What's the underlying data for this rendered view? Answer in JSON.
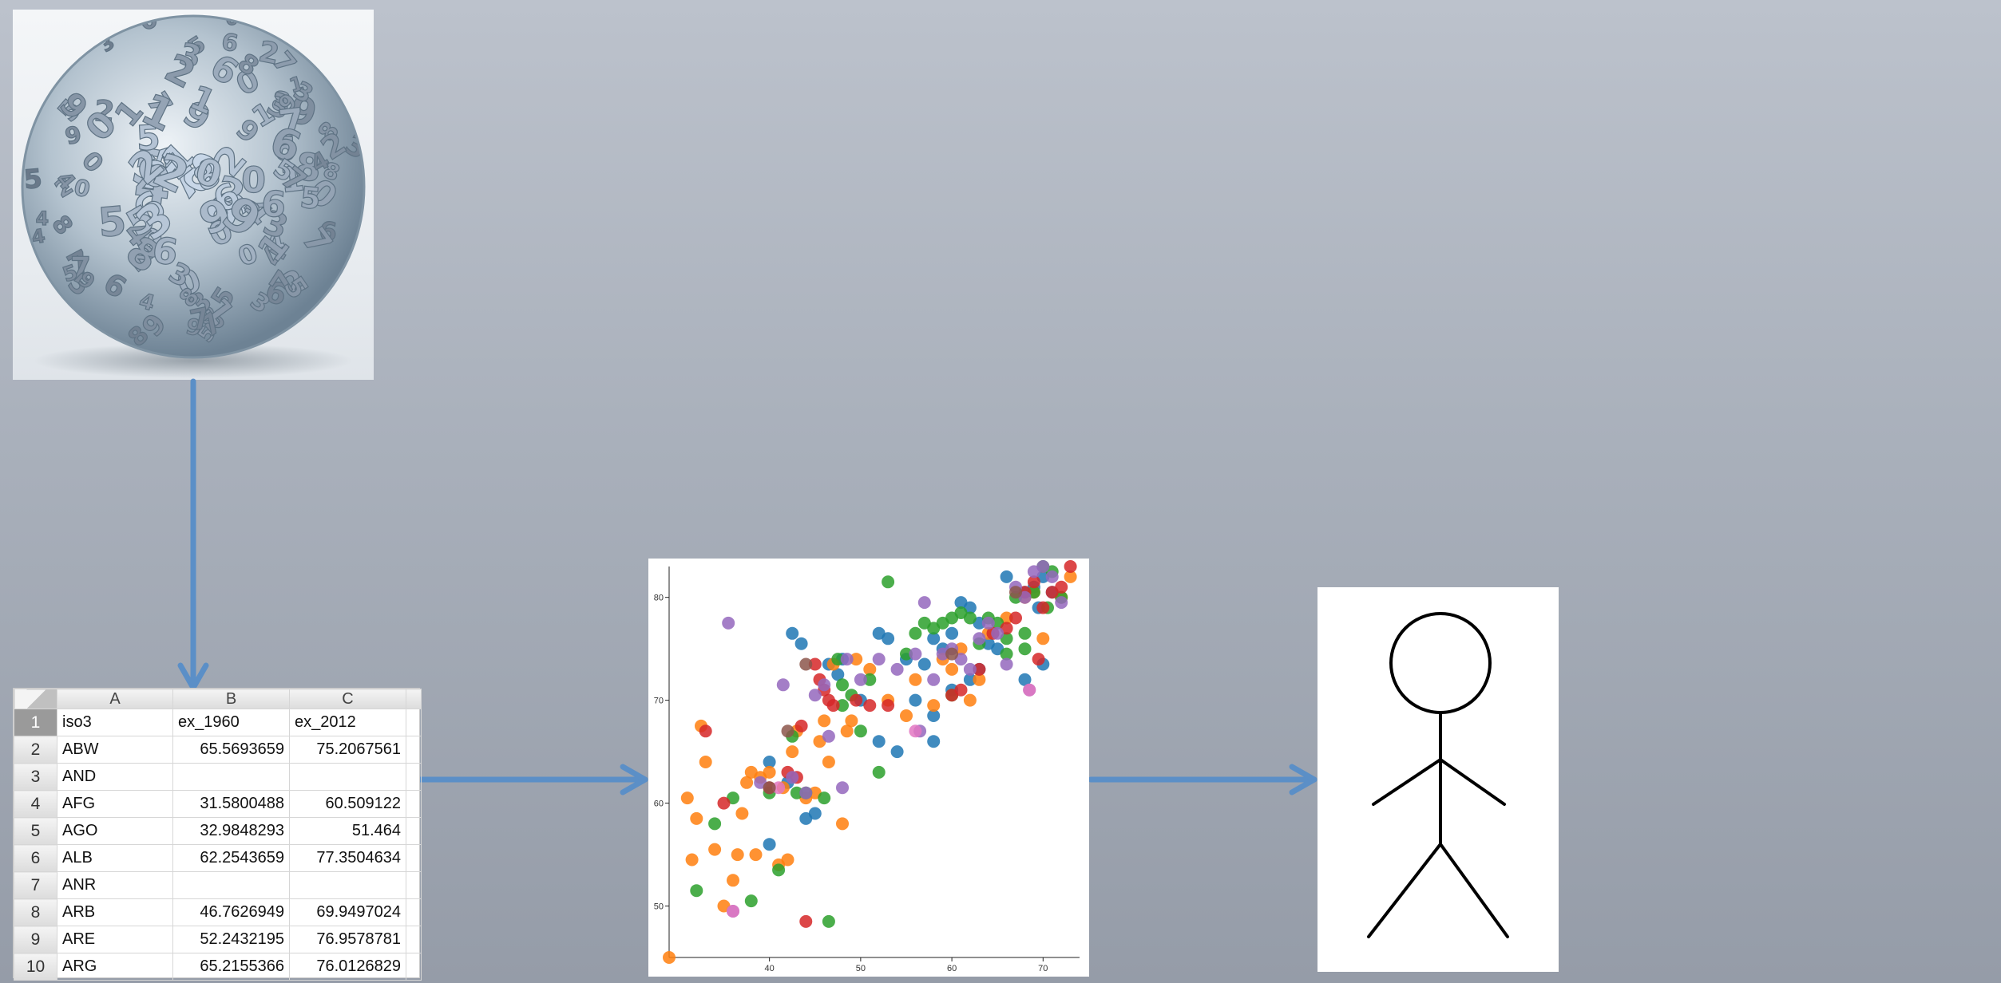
{
  "spreadsheet": {
    "columns": [
      "A",
      "B",
      "C"
    ],
    "rows": [
      {
        "n": "1",
        "a": "iso3",
        "b": "ex_1960",
        "c": "ex_2012"
      },
      {
        "n": "2",
        "a": "ABW",
        "b": "65.5693659",
        "c": "75.2067561"
      },
      {
        "n": "3",
        "a": "AND",
        "b": "",
        "c": ""
      },
      {
        "n": "4",
        "a": "AFG",
        "b": "31.5800488",
        "c": "60.509122"
      },
      {
        "n": "5",
        "a": "AGO",
        "b": "32.9848293",
        "c": "51.464"
      },
      {
        "n": "6",
        "a": "ALB",
        "b": "62.2543659",
        "c": "77.3504634"
      },
      {
        "n": "7",
        "a": "ANR",
        "b": "",
        "c": ""
      },
      {
        "n": "8",
        "a": "ARB",
        "b": "46.7626949",
        "c": "69.9497024"
      },
      {
        "n": "9",
        "a": "ARE",
        "b": "52.2432195",
        "c": "76.9578781"
      },
      {
        "n": "10",
        "a": "ARG",
        "b": "65.2155366",
        "c": "76.0126829"
      }
    ]
  },
  "ball": {
    "digits": [
      "2",
      "5",
      "9",
      "0",
      "6",
      "4",
      "7",
      "3",
      "1",
      "8",
      "5",
      "2",
      "6",
      "0",
      "9",
      "3",
      "4",
      "7",
      "1",
      "8",
      "2",
      "6",
      "5",
      "0",
      "3",
      "9",
      "7",
      "4",
      "8",
      "1",
      "6",
      "2",
      "0",
      "5",
      "3",
      "9",
      "4",
      "7",
      "1",
      "8",
      "5",
      "6"
    ]
  },
  "chart_data": {
    "type": "scatter",
    "title": "",
    "xlabel": "",
    "ylabel": "",
    "xlim": [
      29,
      74
    ],
    "ylim": [
      45,
      83
    ],
    "x_ticks": [
      "40",
      "50",
      "60",
      "70"
    ],
    "y_ticks": [
      "50",
      "60",
      "70",
      "80"
    ],
    "grid": false,
    "legend": "none",
    "series": [
      {
        "color": "#1f77b4",
        "points": [
          [
            42.5,
            76.5
          ],
          [
            43.5,
            75.5
          ],
          [
            46.5,
            73.5
          ],
          [
            47.5,
            72.5
          ],
          [
            52,
            76.5
          ],
          [
            53,
            76
          ],
          [
            55,
            74
          ],
          [
            57,
            73.5
          ],
          [
            58,
            76
          ],
          [
            59,
            75
          ],
          [
            60,
            76.5
          ],
          [
            61,
            79.5
          ],
          [
            62,
            79
          ],
          [
            63,
            77.5
          ],
          [
            66,
            82
          ],
          [
            68,
            80.5
          ],
          [
            69,
            81
          ],
          [
            70,
            82
          ],
          [
            71,
            80.5
          ],
          [
            69.5,
            79
          ],
          [
            70,
            73.5
          ],
          [
            68,
            72
          ],
          [
            65,
            75
          ],
          [
            63,
            73
          ],
          [
            60,
            71
          ],
          [
            58,
            68.5
          ],
          [
            58,
            66
          ],
          [
            54,
            65
          ],
          [
            52,
            66
          ],
          [
            45,
            59
          ],
          [
            44,
            58.5
          ],
          [
            42,
            62
          ],
          [
            40,
            64
          ],
          [
            40,
            56
          ],
          [
            48,
            74
          ],
          [
            50,
            70
          ],
          [
            56,
            70
          ],
          [
            62,
            72
          ],
          [
            64,
            75.5
          ]
        ]
      },
      {
        "color": "#ff7f0e",
        "points": [
          [
            29,
            45
          ],
          [
            31,
            60.5
          ],
          [
            31.5,
            54.5
          ],
          [
            32,
            58.5
          ],
          [
            32.5,
            67.5
          ],
          [
            33,
            64
          ],
          [
            34,
            55.5
          ],
          [
            35,
            50
          ],
          [
            36,
            52.5
          ],
          [
            36.5,
            55
          ],
          [
            37,
            59
          ],
          [
            37.5,
            62
          ],
          [
            38,
            63
          ],
          [
            38.5,
            55
          ],
          [
            39,
            62.5
          ],
          [
            40,
            63
          ],
          [
            41,
            54
          ],
          [
            41.5,
            61.5
          ],
          [
            42,
            54.5
          ],
          [
            42.5,
            65
          ],
          [
            43,
            67
          ],
          [
            44,
            60.5
          ],
          [
            45,
            61
          ],
          [
            45.5,
            66
          ],
          [
            46,
            68
          ],
          [
            46.5,
            64
          ],
          [
            47,
            73.5
          ],
          [
            48,
            58
          ],
          [
            48.5,
            67
          ],
          [
            49,
            68
          ],
          [
            49.5,
            74
          ],
          [
            51,
            73
          ],
          [
            53,
            70
          ],
          [
            55,
            68.5
          ],
          [
            56,
            72
          ],
          [
            58,
            69.5
          ],
          [
            59,
            74
          ],
          [
            60,
            73
          ],
          [
            61,
            75
          ],
          [
            62,
            70
          ],
          [
            63,
            72
          ],
          [
            64,
            76.5
          ],
          [
            66,
            78
          ],
          [
            68,
            80
          ],
          [
            69,
            80.5
          ],
          [
            70,
            76
          ],
          [
            72,
            80
          ],
          [
            73,
            82
          ]
        ]
      },
      {
        "color": "#2ca02c",
        "points": [
          [
            32,
            51.5
          ],
          [
            34,
            58
          ],
          [
            36,
            60.5
          ],
          [
            38,
            50.5
          ],
          [
            40,
            61
          ],
          [
            41,
            53.5
          ],
          [
            42.5,
            66.5
          ],
          [
            43,
            61
          ],
          [
            44,
            61
          ],
          [
            46,
            60.5
          ],
          [
            46.5,
            48.5
          ],
          [
            47.5,
            74
          ],
          [
            48,
            71.5
          ],
          [
            49,
            70.5
          ],
          [
            50,
            67
          ],
          [
            51,
            72
          ],
          [
            52,
            63
          ],
          [
            53,
            81.5
          ],
          [
            55,
            74.5
          ],
          [
            57,
            77.5
          ],
          [
            58,
            77
          ],
          [
            59,
            77.5
          ],
          [
            60,
            78
          ],
          [
            61,
            78.5
          ],
          [
            62,
            78
          ],
          [
            63,
            75.5
          ],
          [
            64,
            78
          ],
          [
            65,
            77.5
          ],
          [
            66,
            76
          ],
          [
            67,
            80
          ],
          [
            68,
            76.5
          ],
          [
            69,
            80.5
          ],
          [
            70,
            83
          ],
          [
            71,
            82.5
          ],
          [
            72,
            80
          ],
          [
            70.5,
            79
          ],
          [
            68,
            75
          ],
          [
            66,
            74.5
          ],
          [
            60,
            70.5
          ],
          [
            56,
            76.5
          ],
          [
            48,
            69.5
          ]
        ]
      },
      {
        "color": "#d62728",
        "points": [
          [
            33,
            67
          ],
          [
            35,
            60
          ],
          [
            40,
            61.5
          ],
          [
            42,
            63
          ],
          [
            43,
            62.5
          ],
          [
            43.5,
            67.5
          ],
          [
            44,
            48.5
          ],
          [
            45,
            73.5
          ],
          [
            45.5,
            72
          ],
          [
            46,
            71
          ],
          [
            46.5,
            70
          ],
          [
            47,
            69.5
          ],
          [
            49.5,
            70
          ],
          [
            51,
            69.5
          ],
          [
            53,
            69.5
          ],
          [
            60,
            70.5
          ],
          [
            61,
            71
          ],
          [
            63,
            73
          ],
          [
            64.5,
            76.5
          ],
          [
            66,
            77
          ],
          [
            68,
            80.5
          ],
          [
            69,
            81.5
          ],
          [
            70,
            79
          ],
          [
            71,
            80.5
          ],
          [
            72,
            81
          ],
          [
            73,
            83
          ],
          [
            69.5,
            74
          ],
          [
            67,
            78
          ]
        ]
      },
      {
        "color": "#9467bd",
        "points": [
          [
            35.5,
            77.5
          ],
          [
            36,
            49.5
          ],
          [
            39,
            62
          ],
          [
            41.5,
            71.5
          ],
          [
            42.5,
            62.5
          ],
          [
            44,
            61
          ],
          [
            45,
            70.5
          ],
          [
            46,
            71.5
          ],
          [
            46.5,
            66.5
          ],
          [
            48,
            61.5
          ],
          [
            48.5,
            74
          ],
          [
            50,
            72
          ],
          [
            52,
            74
          ],
          [
            54,
            73
          ],
          [
            56,
            74.5
          ],
          [
            56.5,
            67
          ],
          [
            57,
            79.5
          ],
          [
            58,
            72
          ],
          [
            59,
            74.5
          ],
          [
            60,
            75
          ],
          [
            61,
            74
          ],
          [
            62,
            73
          ],
          [
            63,
            76
          ],
          [
            64,
            77.5
          ],
          [
            65,
            76.5
          ],
          [
            66,
            73.5
          ],
          [
            67,
            81
          ],
          [
            68,
            80
          ],
          [
            69,
            82.5
          ],
          [
            70,
            83
          ],
          [
            71,
            82
          ],
          [
            72,
            79.5
          ],
          [
            68.5,
            71
          ]
        ]
      },
      {
        "color": "#e377c2",
        "points": [
          [
            36,
            49.5
          ],
          [
            41,
            61.5
          ],
          [
            56,
            67
          ],
          [
            68.5,
            71
          ]
        ]
      },
      {
        "color": "#8c564b",
        "points": [
          [
            40,
            61.5
          ],
          [
            42,
            67
          ],
          [
            44,
            73.5
          ],
          [
            60,
            74.5
          ],
          [
            67,
            80.5
          ]
        ]
      }
    ]
  },
  "colors": {
    "arrow": "#5b8fc7",
    "background_top": "#bcc2cc",
    "background_bottom": "#959ca8"
  }
}
